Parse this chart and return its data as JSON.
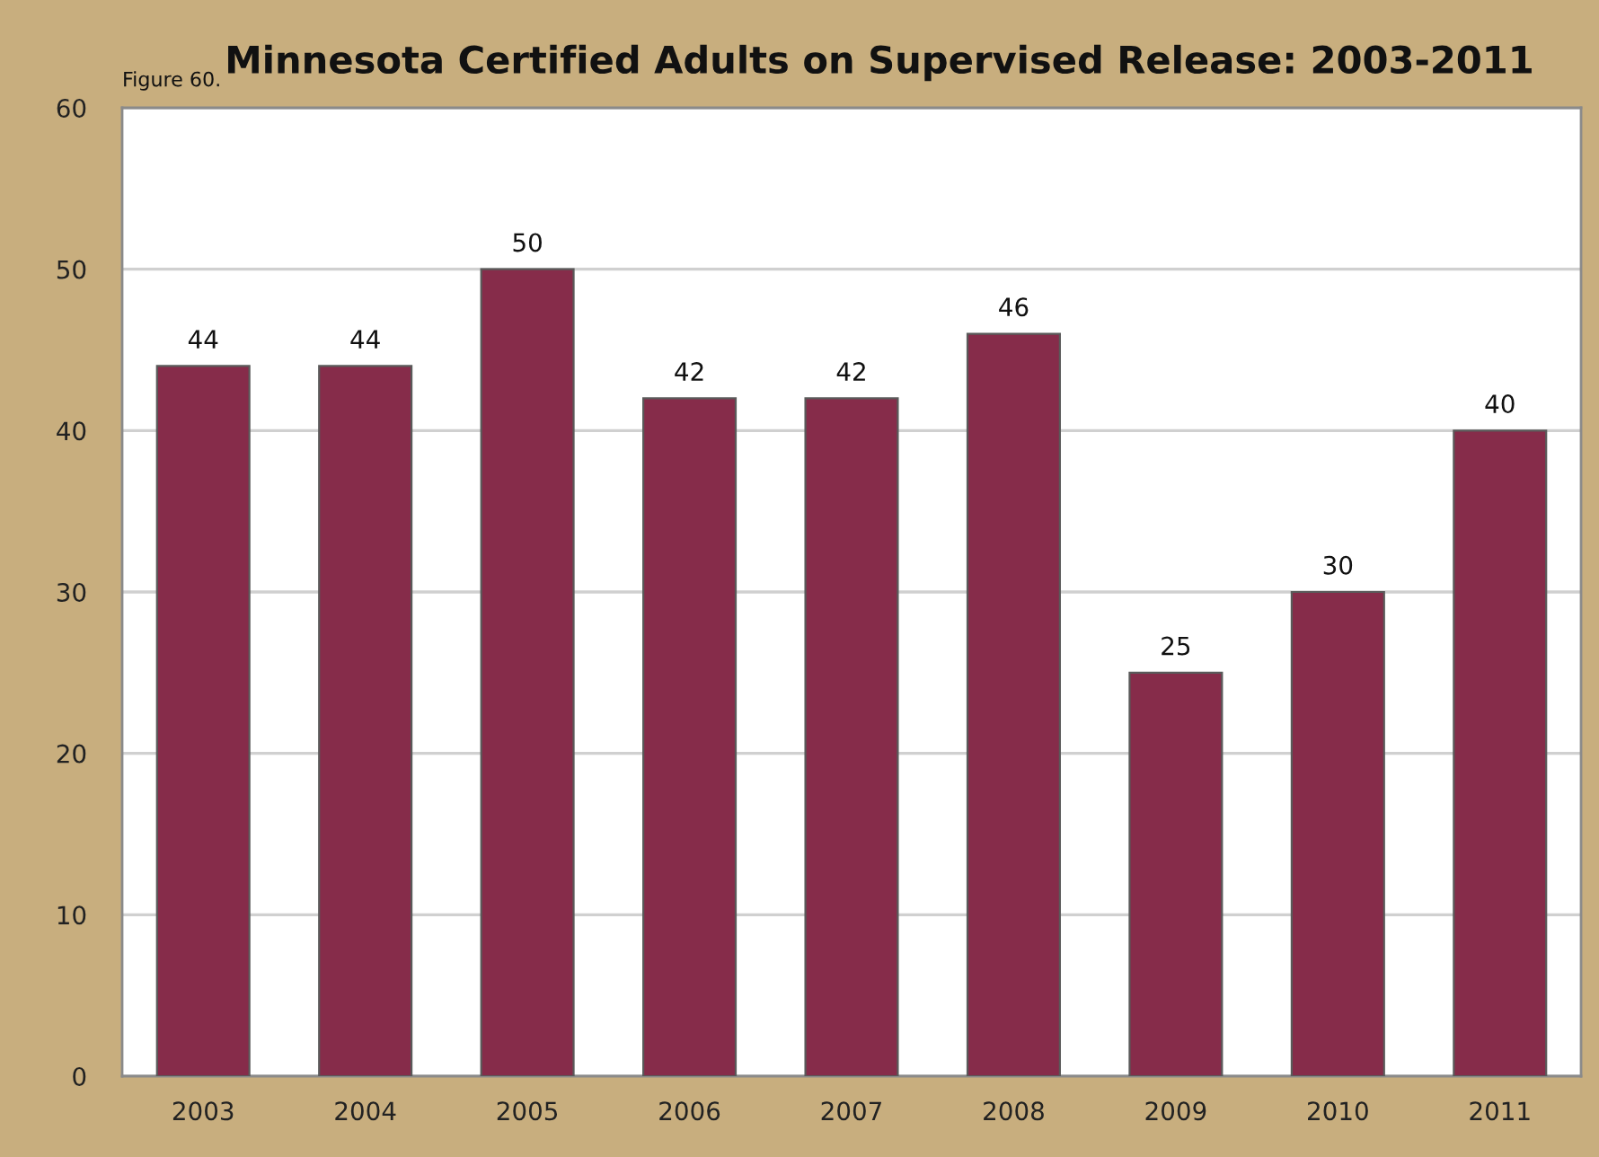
{
  "chart_data": {
    "type": "bar",
    "title": "Minnesota Certified Adults on Supervised Release: 2003-2011",
    "annotations": [
      "Figure 60."
    ],
    "categories": [
      "2003",
      "2004",
      "2005",
      "2006",
      "2007",
      "2008",
      "2009",
      "2010",
      "2011"
    ],
    "values": [
      44,
      44,
      50,
      42,
      42,
      46,
      25,
      30,
      40
    ],
    "color": "#862c4a",
    "ylim": [
      0,
      60
    ],
    "yticks": [
      0,
      10,
      20,
      30,
      40,
      50,
      60
    ],
    "grid": "y",
    "data_labels": true
  }
}
